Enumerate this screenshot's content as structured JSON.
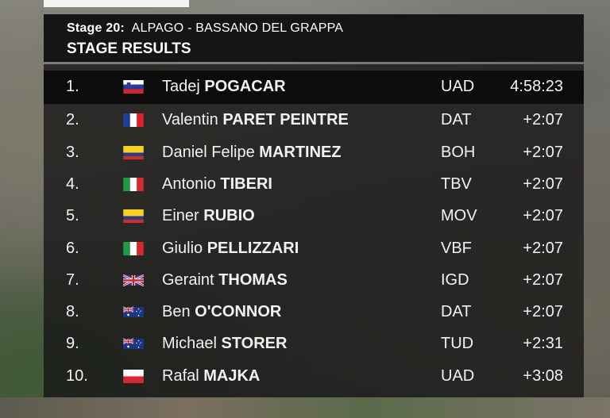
{
  "header": {
    "stage_number": "Stage 20:",
    "stage_route": "ALPAGO - BASSANO DEL GRAPPA",
    "title": "STAGE RESULTS"
  },
  "colors": {
    "header_bg": "#151515",
    "panel_bg": "#161616",
    "text": "#f2f2f2"
  },
  "results": [
    {
      "pos": "1.",
      "flag": "slovenia-flag",
      "first": "Tadej",
      "last": "POGACAR",
      "team": "UAD",
      "time": "4:58:23"
    },
    {
      "pos": "2.",
      "flag": "france-flag",
      "first": "Valentin",
      "last": "PARET PEINTRE",
      "team": "DAT",
      "time": "+2:07"
    },
    {
      "pos": "3.",
      "flag": "colombia-flag",
      "first": "Daniel Felipe",
      "last": "MARTINEZ",
      "team": "BOH",
      "time": "+2:07"
    },
    {
      "pos": "4.",
      "flag": "italy-flag",
      "first": "Antonio",
      "last": "TIBERI",
      "team": "TBV",
      "time": "+2:07"
    },
    {
      "pos": "5.",
      "flag": "colombia-flag",
      "first": "Einer",
      "last": "RUBIO",
      "team": "MOV",
      "time": "+2:07"
    },
    {
      "pos": "6.",
      "flag": "italy-flag",
      "first": "Giulio",
      "last": "PELLIZZARI",
      "team": "VBF",
      "time": "+2:07"
    },
    {
      "pos": "7.",
      "flag": "uk-flag",
      "first": "Geraint",
      "last": "THOMAS",
      "team": "IGD",
      "time": "+2:07"
    },
    {
      "pos": "8.",
      "flag": "australia-flag",
      "first": "Ben",
      "last": "O'CONNOR",
      "team": "DAT",
      "time": "+2:07"
    },
    {
      "pos": "9.",
      "flag": "australia-flag",
      "first": "Michael",
      "last": "STORER",
      "team": "TUD",
      "time": "+2:31"
    },
    {
      "pos": "10.",
      "flag": "poland-flag",
      "first": "Rafal",
      "last": "MAJKA",
      "team": "UAD",
      "time": "+3:08"
    }
  ]
}
